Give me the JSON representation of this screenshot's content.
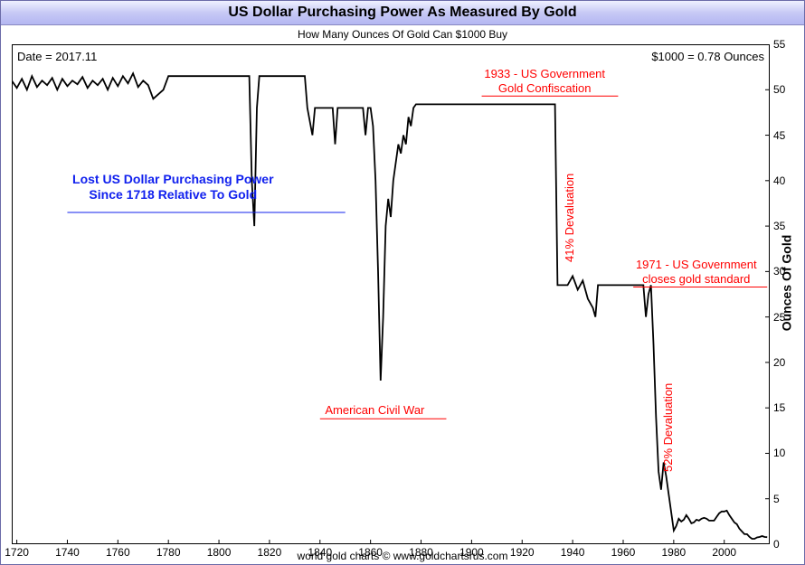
{
  "title": "US Dollar Purchasing Power As Measured By Gold",
  "subtitle": "How Many Ounces Of Gold Can $1000 Buy",
  "footer": "world gold charts © www.goldchartsrus.com",
  "date_label": "Date = 2017.11",
  "value_label": "$1000 = 0.78 Ounces",
  "y_axis_label": "Ounces Of Gold",
  "chart": {
    "type": "line",
    "xlim": [
      1718,
      2018
    ],
    "ylim": [
      0,
      55
    ],
    "xtick_step": 20,
    "xtick_start": 1720,
    "xtick_end": 2000,
    "ytick_step": 5,
    "ytick_start": 0,
    "ytick_end": 55,
    "line_color": "#000000",
    "line_width": 1.8,
    "background_color": "#ffffff",
    "border_color": "#000000",
    "title_bar_gradient": [
      "#eff0ff",
      "#c7c9f5",
      "#b4b7f2"
    ],
    "tick_font_size": 12,
    "series": [
      {
        "x": 1718,
        "y": 51.0
      },
      {
        "x": 1720,
        "y": 50.2
      },
      {
        "x": 1722,
        "y": 51.2
      },
      {
        "x": 1724,
        "y": 50.0
      },
      {
        "x": 1726,
        "y": 51.5
      },
      {
        "x": 1728,
        "y": 50.3
      },
      {
        "x": 1730,
        "y": 51.0
      },
      {
        "x": 1732,
        "y": 50.5
      },
      {
        "x": 1734,
        "y": 51.3
      },
      {
        "x": 1736,
        "y": 50.0
      },
      {
        "x": 1738,
        "y": 51.2
      },
      {
        "x": 1740,
        "y": 50.4
      },
      {
        "x": 1742,
        "y": 51.0
      },
      {
        "x": 1744,
        "y": 50.6
      },
      {
        "x": 1746,
        "y": 51.4
      },
      {
        "x": 1748,
        "y": 50.2
      },
      {
        "x": 1750,
        "y": 51.0
      },
      {
        "x": 1752,
        "y": 50.5
      },
      {
        "x": 1754,
        "y": 51.2
      },
      {
        "x": 1756,
        "y": 50.0
      },
      {
        "x": 1758,
        "y": 51.3
      },
      {
        "x": 1760,
        "y": 50.4
      },
      {
        "x": 1762,
        "y": 51.5
      },
      {
        "x": 1764,
        "y": 50.7
      },
      {
        "x": 1766,
        "y": 51.8
      },
      {
        "x": 1768,
        "y": 50.3
      },
      {
        "x": 1770,
        "y": 51.0
      },
      {
        "x": 1772,
        "y": 50.5
      },
      {
        "x": 1774,
        "y": 49.0
      },
      {
        "x": 1776,
        "y": 49.5
      },
      {
        "x": 1778,
        "y": 50.0
      },
      {
        "x": 1780,
        "y": 51.5
      },
      {
        "x": 1782,
        "y": 51.5
      },
      {
        "x": 1790,
        "y": 51.5
      },
      {
        "x": 1800,
        "y": 51.5
      },
      {
        "x": 1810,
        "y": 51.5
      },
      {
        "x": 1812,
        "y": 51.5
      },
      {
        "x": 1813,
        "y": 40.0
      },
      {
        "x": 1814,
        "y": 35.0
      },
      {
        "x": 1815,
        "y": 48.0
      },
      {
        "x": 1816,
        "y": 51.5
      },
      {
        "x": 1820,
        "y": 51.5
      },
      {
        "x": 1830,
        "y": 51.5
      },
      {
        "x": 1834,
        "y": 51.5
      },
      {
        "x": 1835,
        "y": 48.0
      },
      {
        "x": 1837,
        "y": 45.0
      },
      {
        "x": 1838,
        "y": 48.0
      },
      {
        "x": 1840,
        "y": 48.0
      },
      {
        "x": 1844,
        "y": 48.0
      },
      {
        "x": 1845,
        "y": 48.0
      },
      {
        "x": 1846,
        "y": 44.0
      },
      {
        "x": 1847,
        "y": 48.0
      },
      {
        "x": 1850,
        "y": 48.0
      },
      {
        "x": 1857,
        "y": 48.0
      },
      {
        "x": 1858,
        "y": 45.0
      },
      {
        "x": 1859,
        "y": 48.0
      },
      {
        "x": 1860,
        "y": 48.0
      },
      {
        "x": 1861,
        "y": 46.0
      },
      {
        "x": 1862,
        "y": 40.0
      },
      {
        "x": 1863,
        "y": 30.0
      },
      {
        "x": 1864,
        "y": 18.0
      },
      {
        "x": 1865,
        "y": 25.0
      },
      {
        "x": 1866,
        "y": 35.0
      },
      {
        "x": 1867,
        "y": 38.0
      },
      {
        "x": 1868,
        "y": 36.0
      },
      {
        "x": 1869,
        "y": 40.0
      },
      {
        "x": 1870,
        "y": 42.0
      },
      {
        "x": 1871,
        "y": 44.0
      },
      {
        "x": 1872,
        "y": 43.0
      },
      {
        "x": 1873,
        "y": 45.0
      },
      {
        "x": 1874,
        "y": 44.0
      },
      {
        "x": 1875,
        "y": 47.0
      },
      {
        "x": 1876,
        "y": 46.0
      },
      {
        "x": 1877,
        "y": 48.0
      },
      {
        "x": 1878,
        "y": 48.4
      },
      {
        "x": 1880,
        "y": 48.4
      },
      {
        "x": 1890,
        "y": 48.4
      },
      {
        "x": 1900,
        "y": 48.4
      },
      {
        "x": 1910,
        "y": 48.4
      },
      {
        "x": 1920,
        "y": 48.4
      },
      {
        "x": 1930,
        "y": 48.4
      },
      {
        "x": 1933,
        "y": 48.4
      },
      {
        "x": 1934,
        "y": 28.5
      },
      {
        "x": 1935,
        "y": 28.5
      },
      {
        "x": 1938,
        "y": 28.5
      },
      {
        "x": 1940,
        "y": 29.5
      },
      {
        "x": 1942,
        "y": 28.0
      },
      {
        "x": 1944,
        "y": 29.0
      },
      {
        "x": 1946,
        "y": 27.0
      },
      {
        "x": 1948,
        "y": 26.0
      },
      {
        "x": 1949,
        "y": 25.0
      },
      {
        "x": 1950,
        "y": 28.5
      },
      {
        "x": 1952,
        "y": 28.5
      },
      {
        "x": 1955,
        "y": 28.5
      },
      {
        "x": 1960,
        "y": 28.5
      },
      {
        "x": 1965,
        "y": 28.5
      },
      {
        "x": 1968,
        "y": 28.5
      },
      {
        "x": 1969,
        "y": 25.0
      },
      {
        "x": 1970,
        "y": 27.5
      },
      {
        "x": 1971,
        "y": 28.5
      },
      {
        "x": 1972,
        "y": 22.0
      },
      {
        "x": 1973,
        "y": 14.0
      },
      {
        "x": 1974,
        "y": 8.0
      },
      {
        "x": 1975,
        "y": 6.0
      },
      {
        "x": 1976,
        "y": 9.0
      },
      {
        "x": 1977,
        "y": 7.5
      },
      {
        "x": 1978,
        "y": 5.5
      },
      {
        "x": 1979,
        "y": 3.5
      },
      {
        "x": 1980,
        "y": 1.5
      },
      {
        "x": 1981,
        "y": 2.0
      },
      {
        "x": 1982,
        "y": 2.8
      },
      {
        "x": 1983,
        "y": 2.5
      },
      {
        "x": 1984,
        "y": 2.7
      },
      {
        "x": 1985,
        "y": 3.2
      },
      {
        "x": 1986,
        "y": 2.8
      },
      {
        "x": 1987,
        "y": 2.3
      },
      {
        "x": 1988,
        "y": 2.4
      },
      {
        "x": 1989,
        "y": 2.7
      },
      {
        "x": 1990,
        "y": 2.6
      },
      {
        "x": 1991,
        "y": 2.8
      },
      {
        "x": 1992,
        "y": 2.9
      },
      {
        "x": 1993,
        "y": 2.8
      },
      {
        "x": 1994,
        "y": 2.6
      },
      {
        "x": 1995,
        "y": 2.6
      },
      {
        "x": 1996,
        "y": 2.6
      },
      {
        "x": 1997,
        "y": 3.0
      },
      {
        "x": 1998,
        "y": 3.4
      },
      {
        "x": 1999,
        "y": 3.6
      },
      {
        "x": 2000,
        "y": 3.6
      },
      {
        "x": 2001,
        "y": 3.7
      },
      {
        "x": 2002,
        "y": 3.2
      },
      {
        "x": 2003,
        "y": 2.8
      },
      {
        "x": 2004,
        "y": 2.4
      },
      {
        "x": 2005,
        "y": 2.2
      },
      {
        "x": 2006,
        "y": 1.7
      },
      {
        "x": 2007,
        "y": 1.4
      },
      {
        "x": 2008,
        "y": 1.1
      },
      {
        "x": 2009,
        "y": 1.1
      },
      {
        "x": 2010,
        "y": 0.8
      },
      {
        "x": 2011,
        "y": 0.6
      },
      {
        "x": 2012,
        "y": 0.6
      },
      {
        "x": 2013,
        "y": 0.75
      },
      {
        "x": 2014,
        "y": 0.8
      },
      {
        "x": 2015,
        "y": 0.9
      },
      {
        "x": 2016,
        "y": 0.8
      },
      {
        "x": 2017,
        "y": 0.78
      }
    ]
  },
  "annotations": {
    "blue_text": "Lost US Dollar Purchasing Power\nSince 1718 Relative To Gold",
    "civil_war": "American Civil War",
    "conf_1933": "1933 - US Government\nGold Confiscation",
    "deval_41": "41% Devaluation",
    "close_1971": "1971 - US Government\ncloses gold standard",
    "deval_52": "52% Devaluation",
    "annotation_color": "#ff0000",
    "blue_color": "#1020ee"
  }
}
